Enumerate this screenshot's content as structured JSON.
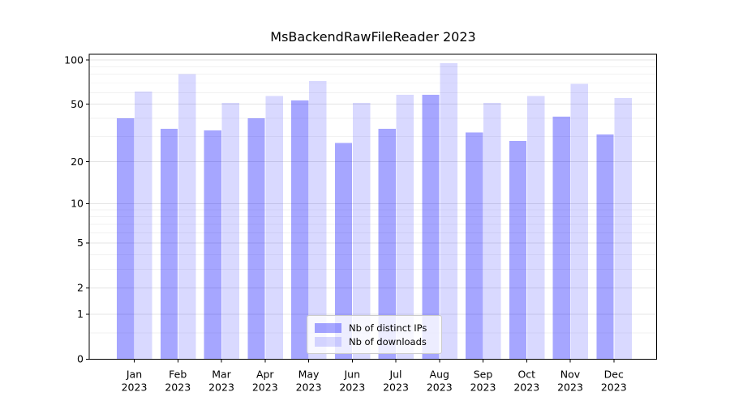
{
  "chart_data": {
    "type": "bar",
    "title": "MsBackendRawFileReader 2023",
    "xlabel": "",
    "ylabel": "",
    "yscale": "log1p",
    "ylim": [
      0,
      109
    ],
    "yticks": [
      0,
      1,
      2,
      5,
      10,
      20,
      50,
      100
    ],
    "grid": {
      "horizontal_major": [
        1,
        2,
        5,
        10,
        20,
        50,
        100
      ],
      "horizontal_minor": [
        0.5,
        3,
        4,
        6,
        7,
        8,
        9,
        30,
        40,
        60,
        70,
        80,
        90
      ]
    },
    "categories": [
      "Jan",
      "Feb",
      "Mar",
      "Apr",
      "May",
      "Jun",
      "Jul",
      "Aug",
      "Sep",
      "Oct",
      "Nov",
      "Dec"
    ],
    "category_year": "2023",
    "series": [
      {
        "name": "Nb of distinct IPs",
        "key": "distinct-ips",
        "color": "rgba(0,0,255,0.35)",
        "values": [
          40,
          34,
          33,
          40,
          53,
          27,
          34,
          58,
          32,
          28,
          41,
          31
        ]
      },
      {
        "name": "Nb of downloads",
        "key": "downloads",
        "color": "rgba(0,0,255,0.15)",
        "values": [
          61,
          80,
          51,
          57,
          72,
          51,
          58,
          95,
          51,
          57,
          69,
          55
        ]
      }
    ],
    "legend": {
      "position": "lower center"
    },
    "colors": {
      "axis": "#000000",
      "grid_major": "#e4e4e4",
      "grid_minor": "#f2f2f2",
      "background": "#ffffff",
      "text": "#000000"
    }
  }
}
